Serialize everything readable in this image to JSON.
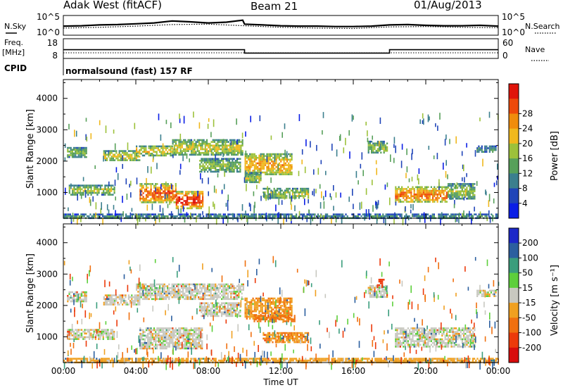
{
  "header": {
    "station": "Adak West (fitACF)",
    "beam": "Beam 21",
    "date": "01/Aug/2013"
  },
  "panel_labels": {
    "nsky": "N.Sky",
    "nsearch": "N.Search",
    "freq": "Freq.",
    "freq_unit": "[MHz]",
    "nave": "Nave",
    "cpid": "CPID",
    "cpid_text": "normalsound (fast) 157 RF"
  },
  "chart_data": [
    {
      "type": "line",
      "panel": "noise",
      "left_axis_ticks": [
        "10^5",
        "10^0"
      ],
      "right_axis_ticks": [
        "10^5",
        "10^0"
      ],
      "series": [
        {
          "name": "N.Sky",
          "style": "solid",
          "x": [
            0,
            1,
            2,
            3,
            4,
            5,
            6,
            7,
            8,
            9,
            9.9,
            10,
            11,
            12,
            13,
            14,
            15,
            16,
            17,
            18,
            19,
            20,
            21,
            22,
            23,
            24
          ],
          "y": [
            2.3,
            2.4,
            2.6,
            2.7,
            2.9,
            3.1,
            3.6,
            3.4,
            3.1,
            3.3,
            3.8,
            2.8,
            2.6,
            2.4,
            2.3,
            2.3,
            2.2,
            2.2,
            2.3,
            2.6,
            2.7,
            2.5,
            2.4,
            2.4,
            2.5,
            2.3
          ]
        },
        {
          "name": "N.Search",
          "style": "dotted",
          "x": [
            0,
            2,
            4,
            6,
            8,
            10,
            12,
            14,
            16,
            18,
            20,
            22,
            24
          ],
          "y": [
            1.8,
            2.0,
            2.3,
            2.7,
            2.8,
            2.4,
            2.0,
            1.8,
            1.7,
            2.1,
            2.2,
            2.0,
            1.9
          ]
        }
      ]
    },
    {
      "type": "line",
      "panel": "frequency",
      "left_axis_ticks": [
        18,
        8
      ],
      "right_axis_ticks": [
        60,
        0
      ],
      "series": [
        {
          "name": "Freq",
          "style": "solid",
          "x": [
            0,
            10,
            10,
            18,
            18,
            24
          ],
          "y": [
            12.2,
            12.2,
            9.8,
            9.8,
            12.2,
            12.2
          ]
        },
        {
          "name": "Nave",
          "style": "dotted",
          "x": [
            0,
            24
          ],
          "y": [
            10,
            10
          ]
        }
      ]
    },
    {
      "type": "heatmap",
      "panel": "power",
      "ylabel": "Slant Range [km]",
      "yticks": [
        1000,
        2000,
        3000,
        4000
      ],
      "ylim": [
        180,
        4600
      ],
      "xlim": [
        0,
        24
      ],
      "colorbar": {
        "label": "Power [dB]",
        "ticks": [
          4,
          8,
          12,
          16,
          20,
          24,
          28
        ],
        "colors": [
          "#0a1ee6",
          "#2045b8",
          "#3b7f8e",
          "#57a05a",
          "#9cc13a",
          "#f0b81d",
          "#f08c0c",
          "#ee4a0a",
          "#e0140a"
        ]
      },
      "regions": [
        {
          "t0": 0.2,
          "t1": 1.3,
          "r0": 2150,
          "r1": 2450,
          "level": 0.45
        },
        {
          "t0": 0.3,
          "t1": 2.8,
          "r0": 950,
          "r1": 1250,
          "level": 0.5
        },
        {
          "t0": 2.2,
          "t1": 4.2,
          "r0": 2000,
          "r1": 2350,
          "level": 0.55
        },
        {
          "t0": 4.2,
          "t1": 6.2,
          "r0": 700,
          "r1": 1300,
          "level": 0.85
        },
        {
          "t0": 6.2,
          "t1": 7.7,
          "r0": 500,
          "r1": 1050,
          "level": 0.95
        },
        {
          "t0": 4.0,
          "t1": 6.0,
          "r0": 2200,
          "r1": 2500,
          "level": 0.6
        },
        {
          "t0": 6.0,
          "t1": 9.9,
          "r0": 2200,
          "r1": 2700,
          "level": 0.55
        },
        {
          "t0": 7.5,
          "t1": 9.8,
          "r0": 1650,
          "r1": 2100,
          "level": 0.45
        },
        {
          "t0": 10.0,
          "t1": 12.6,
          "r0": 1550,
          "r1": 2250,
          "level": 0.7
        },
        {
          "t0": 10.0,
          "t1": 10.9,
          "r0": 1350,
          "r1": 1650,
          "level": 0.5
        },
        {
          "t0": 11.0,
          "t1": 13.5,
          "r0": 800,
          "r1": 1150,
          "level": 0.5
        },
        {
          "t0": 16.8,
          "t1": 17.9,
          "r0": 2250,
          "r1": 2650,
          "level": 0.45
        },
        {
          "t0": 18.3,
          "t1": 21.2,
          "r0": 700,
          "r1": 1200,
          "level": 0.8
        },
        {
          "t0": 21.2,
          "t1": 22.7,
          "r0": 800,
          "r1": 1300,
          "level": 0.45
        },
        {
          "t0": 22.8,
          "t1": 23.9,
          "r0": 2300,
          "r1": 2500,
          "level": 0.3
        },
        {
          "t0": 0.0,
          "t1": 24.0,
          "r0": 180,
          "r1": 330,
          "level": 0.3
        }
      ]
    },
    {
      "type": "heatmap",
      "panel": "velocity",
      "ylabel": "Slant Range [km]",
      "xlabel": "Time UT",
      "yticks": [
        1000,
        2000,
        3000,
        4000
      ],
      "ylim": [
        180,
        4600
      ],
      "xlim": [
        0,
        24
      ],
      "xticklabels": [
        "00:00",
        "04:00",
        "08:00",
        "12:00",
        "16:00",
        "20:00",
        "00:00"
      ],
      "colorbar": {
        "label": "Velocity [m s⁻¹]",
        "ticks": [
          "200",
          "100",
          "50",
          "15",
          "-15",
          "-50",
          "-100",
          "-200"
        ],
        "colors": [
          "#1c28c8",
          "#2b5f9f",
          "#3a9d7c",
          "#5dcf3b",
          "#c8c8c0",
          "#f0a020",
          "#f07010",
          "#ec3a0a",
          "#d80c0c"
        ]
      },
      "regions": [
        {
          "t0": 0.2,
          "t1": 2.8,
          "r0": 950,
          "r1": 1250,
          "v": 0
        },
        {
          "t0": 0.2,
          "t1": 1.3,
          "r0": 2150,
          "r1": 2450,
          "v": 0
        },
        {
          "t0": 2.2,
          "t1": 4.2,
          "r0": 2000,
          "r1": 2350,
          "v": 0
        },
        {
          "t0": 4.2,
          "t1": 7.7,
          "r0": 600,
          "r1": 1300,
          "v": 0
        },
        {
          "t0": 4.0,
          "t1": 9.9,
          "r0": 2200,
          "r1": 2700,
          "v": 0
        },
        {
          "t0": 7.5,
          "t1": 9.8,
          "r0": 1650,
          "r1": 2100,
          "v": 0
        },
        {
          "t0": 10.0,
          "t1": 12.6,
          "r0": 1550,
          "r1": 2250,
          "v": -40
        },
        {
          "t0": 10.5,
          "t1": 12.8,
          "r0": 1500,
          "r1": 1700,
          "v": -60
        },
        {
          "t0": 11.0,
          "t1": 13.5,
          "r0": 800,
          "r1": 1150,
          "v": -45
        },
        {
          "t0": 16.8,
          "t1": 17.9,
          "r0": 2250,
          "r1": 2650,
          "v": 0
        },
        {
          "t0": 17.3,
          "t1": 17.7,
          "r0": 2600,
          "r1": 2850,
          "v": -180
        },
        {
          "t0": 18.3,
          "t1": 22.7,
          "r0": 700,
          "r1": 1300,
          "v": 0
        },
        {
          "t0": 22.8,
          "t1": 23.9,
          "r0": 2300,
          "r1": 2500,
          "v": 0
        },
        {
          "t0": 0.0,
          "t1": 24.0,
          "r0": 180,
          "r1": 330,
          "v": -30
        }
      ]
    }
  ]
}
